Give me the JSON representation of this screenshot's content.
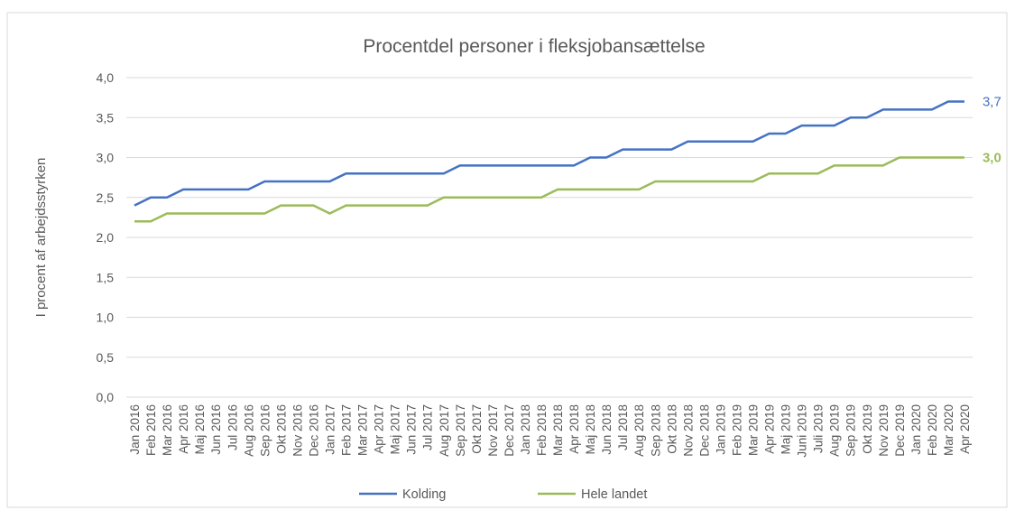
{
  "chart_data": {
    "type": "line",
    "title": "Procentdel personer i fleksjobansættelse",
    "y_label": "I procent af arbejdsstyrken",
    "categories": [
      "Jan 2016",
      "Feb 2016",
      "Mar 2016",
      "Apr 2016",
      "Maj 2016",
      "Jun 2016",
      "Jul 2016",
      "Aug 2016",
      "Sep 2016",
      "Okt 2016",
      "Nov 2016",
      "Dec 2016",
      "Jan 2017",
      "Feb 2017",
      "Mar 2017",
      "Apr 2017",
      "Maj 2017",
      "Jun 2017",
      "Jul 2017",
      "Aug 2017",
      "Sep 2017",
      "Okt 2017",
      "Nov 2017",
      "Dec 2017",
      "Jan 2018",
      "Feb 2018",
      "Mar 2018",
      "Apr 2018",
      "Maj 2018",
      "Jun 2018",
      "Jul 2018",
      "Aug 2018",
      "Sep 2018",
      "Okt 2018",
      "Nov 2018",
      "Dec 2018",
      "Jan 2019",
      "Feb 2019",
      "Mar 2019",
      "Apr 2019",
      "Maj 2019",
      "Juni 2019",
      "Juli 2019",
      "Aug 2019",
      "Sep 2019",
      "Okt 2019",
      "Nov 2019",
      "Dec 2019",
      "Jan 2020",
      "Feb 2020",
      "Mar 2020",
      "Apr 2020"
    ],
    "series": [
      {
        "name": "Kolding",
        "color": "#4472c4",
        "values": [
          2.4,
          2.5,
          2.5,
          2.6,
          2.6,
          2.6,
          2.6,
          2.6,
          2.7,
          2.7,
          2.7,
          2.7,
          2.7,
          2.8,
          2.8,
          2.8,
          2.8,
          2.8,
          2.8,
          2.8,
          2.9,
          2.9,
          2.9,
          2.9,
          2.9,
          2.9,
          2.9,
          2.9,
          3.0,
          3.0,
          3.1,
          3.1,
          3.1,
          3.1,
          3.2,
          3.2,
          3.2,
          3.2,
          3.2,
          3.3,
          3.3,
          3.4,
          3.4,
          3.4,
          3.5,
          3.5,
          3.6,
          3.6,
          3.6,
          3.6,
          3.7,
          3.7
        ],
        "value_labels": [
          null,
          null,
          null,
          null,
          null,
          null,
          null,
          null,
          null,
          null,
          null,
          null,
          null,
          null,
          null,
          null,
          null,
          null,
          null,
          null,
          null,
          null,
          null,
          null,
          null,
          null,
          null,
          null,
          null,
          null,
          null,
          null,
          null,
          null,
          null,
          null,
          null,
          null,
          null,
          null,
          null,
          null,
          null,
          null,
          null,
          null,
          null,
          null,
          null,
          null,
          null,
          "3,7"
        ]
      },
      {
        "name": "Hele landet",
        "color": "#9bbb59",
        "values": [
          2.2,
          2.2,
          2.3,
          2.3,
          2.3,
          2.3,
          2.3,
          2.3,
          2.3,
          2.4,
          2.4,
          2.4,
          2.3,
          2.4,
          2.4,
          2.4,
          2.4,
          2.4,
          2.4,
          2.5,
          2.5,
          2.5,
          2.5,
          2.5,
          2.5,
          2.5,
          2.6,
          2.6,
          2.6,
          2.6,
          2.6,
          2.6,
          2.7,
          2.7,
          2.7,
          2.7,
          2.7,
          2.7,
          2.7,
          2.8,
          2.8,
          2.8,
          2.8,
          2.9,
          2.9,
          2.9,
          2.9,
          3.0,
          3.0,
          3.0,
          3.0,
          3.0
        ],
        "value_labels": [
          null,
          null,
          null,
          null,
          null,
          null,
          null,
          null,
          null,
          null,
          null,
          null,
          null,
          null,
          null,
          null,
          null,
          null,
          null,
          null,
          null,
          null,
          null,
          null,
          null,
          null,
          null,
          null,
          null,
          null,
          null,
          null,
          null,
          null,
          null,
          null,
          null,
          null,
          null,
          null,
          null,
          null,
          null,
          null,
          null,
          null,
          null,
          null,
          null,
          null,
          null,
          "3,0"
        ]
      }
    ],
    "ylim": [
      0,
      4
    ],
    "yticks": [
      {
        "value": 0,
        "label": "0,0"
      },
      {
        "value": 0.5,
        "label": "0,5"
      },
      {
        "value": 1,
        "label": "1,0"
      },
      {
        "value": 1.5,
        "label": "1,5"
      },
      {
        "value": 2,
        "label": "2,0"
      },
      {
        "value": 2.5,
        "label": "2,5"
      },
      {
        "value": 3,
        "label": "3,0"
      },
      {
        "value": 3.5,
        "label": "3,5"
      },
      {
        "value": 4,
        "label": "4,0"
      }
    ],
    "grid": true,
    "legend": "bottom"
  }
}
